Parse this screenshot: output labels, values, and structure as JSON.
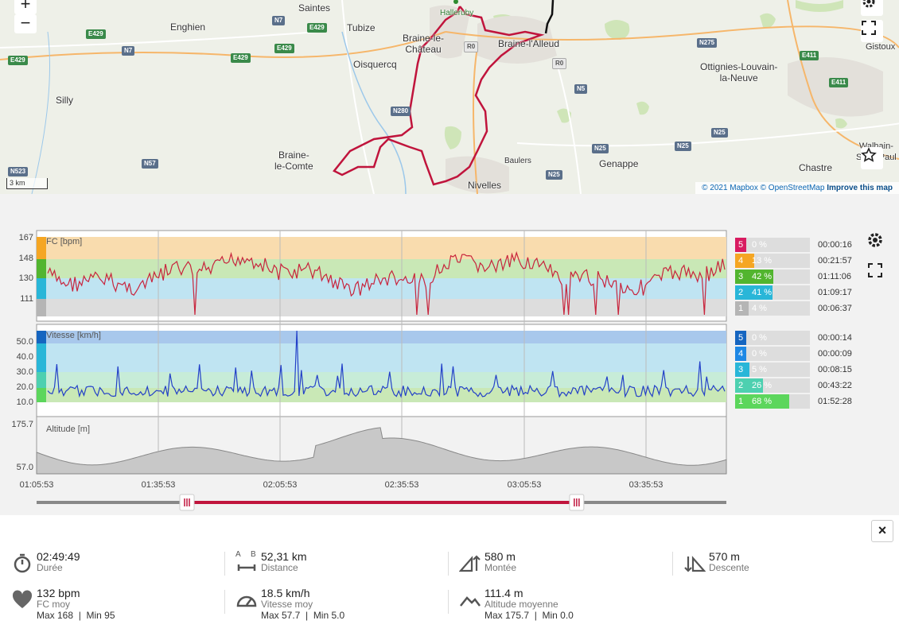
{
  "map": {
    "zoom_in": "+",
    "zoom_out": "−",
    "scale": "3 km",
    "attribution": {
      "mapbox": "© 2021 Mapbox",
      "osm": "OpenStreetMap",
      "improve": "Improve this map",
      "sep": "©"
    },
    "places": [
      "Saintes",
      "Enghien",
      "Tubize",
      "Braine-le-Château",
      "Oisquercq",
      "Braine-l'Alleud",
      "Ottignies-Louvain-la-Neuve",
      "Silly",
      "Braine-le-Comte",
      "Baulers",
      "Genappe",
      "Nivelles",
      "Chastre",
      "Walhain-Saint-Paul",
      "Gistoux",
      "Halleruby"
    ],
    "place_text": {
      "saintes": "Saintes",
      "enghien": "Enghien",
      "tubize": "Tubize",
      "braine_chateau": "Braine-le-\nChâteau",
      "oisquercq": "Oisquercq",
      "alleud": "Braine-l'Alleud",
      "ottignies": "Ottignies-Louvain-\nla-Neuve",
      "silly": "Silly",
      "comte": "Braine-\nle-Comte",
      "baulers": "Baulers",
      "genappe": "Genappe",
      "nivelles": "Nivelles",
      "chastre": "Chastre",
      "walhain": "Walhain-\nSaint-Paul",
      "gistoux": "Gistoux"
    },
    "roads": [
      "N7",
      "E429",
      "E429",
      "E429",
      "E429",
      "N7",
      "E429",
      "R0",
      "R0",
      "N280",
      "N5",
      "N275",
      "E411",
      "E411",
      "N25",
      "N25",
      "N25",
      "N25",
      "N57",
      "N523"
    ]
  },
  "hr_chart": {
    "title": "FC [bpm]",
    "yticks": [
      "167",
      "148",
      "130",
      "111"
    ],
    "zones": [
      {
        "num": "5",
        "pct": "0 %",
        "frac": 0.0,
        "time": "00:00:16",
        "color": "#d81b60"
      },
      {
        "num": "4",
        "pct": "13 %",
        "frac": 0.13,
        "time": "00:21:57",
        "color": "#f5a623"
      },
      {
        "num": "3",
        "pct": "42 %",
        "frac": 0.42,
        "time": "01:11:06",
        "color": "#52b52f"
      },
      {
        "num": "2",
        "pct": "41 %",
        "frac": 0.41,
        "time": "01:09:17",
        "color": "#29b6d8"
      },
      {
        "num": "1",
        "pct": "4 %",
        "frac": 0.04,
        "time": "00:06:37",
        "color": "#b5b5b5"
      }
    ]
  },
  "speed_chart": {
    "title": "Vitesse [km/h]",
    "yticks": [
      "50.0",
      "40.0",
      "30.0",
      "20.0",
      "10.0"
    ],
    "zones": [
      {
        "num": "5",
        "pct": "0 %",
        "frac": 0.0,
        "time": "00:00:14",
        "color": "#1565c0"
      },
      {
        "num": "4",
        "pct": "0 %",
        "frac": 0.0,
        "time": "00:00:09",
        "color": "#1e88e5"
      },
      {
        "num": "3",
        "pct": "5 %",
        "frac": 0.05,
        "time": "00:08:15",
        "color": "#29b6d8"
      },
      {
        "num": "2",
        "pct": "26 %",
        "frac": 0.26,
        "time": "00:43:22",
        "color": "#4dd0b0"
      },
      {
        "num": "1",
        "pct": "68 %",
        "frac": 0.68,
        "time": "01:52:28",
        "color": "#5cd65c"
      }
    ]
  },
  "alt_chart": {
    "title": "Altitude [m]",
    "yticks": [
      "175.7",
      "57.0"
    ]
  },
  "xticks": [
    "01:05:53",
    "01:35:53",
    "02:05:53",
    "02:35:53",
    "03:05:53",
    "03:35:53"
  ],
  "slider": {
    "start_frac": 0.218,
    "end_frac": 0.783
  },
  "stats": {
    "duration": {
      "value": "02:49:49",
      "label": "Durée"
    },
    "distance": {
      "value": "52,31 km",
      "label": "Distance",
      "icon_a": "A",
      "icon_b": "B"
    },
    "climb": {
      "value": "580 m",
      "label": "Montée"
    },
    "descent": {
      "value": "570 m",
      "label": "Descente"
    },
    "hr": {
      "value": "132 bpm",
      "label": "FC moy",
      "extra": "Max 168  |  Min 95"
    },
    "speed": {
      "value": "18.5 km/h",
      "label": "Vitesse moy",
      "extra": "Max 57.7  |  Min 5.0"
    },
    "altitude": {
      "value": "111.4 m",
      "label": "Altitude moyenne",
      "extra": "Max 175.7  |  Min 0.0"
    }
  },
  "close_label": "×",
  "colors": {
    "route": "#c0143c",
    "hr_line": "#c8243c",
    "speed_line": "#2340c8",
    "alt_fill": "#c8c8c8"
  }
}
